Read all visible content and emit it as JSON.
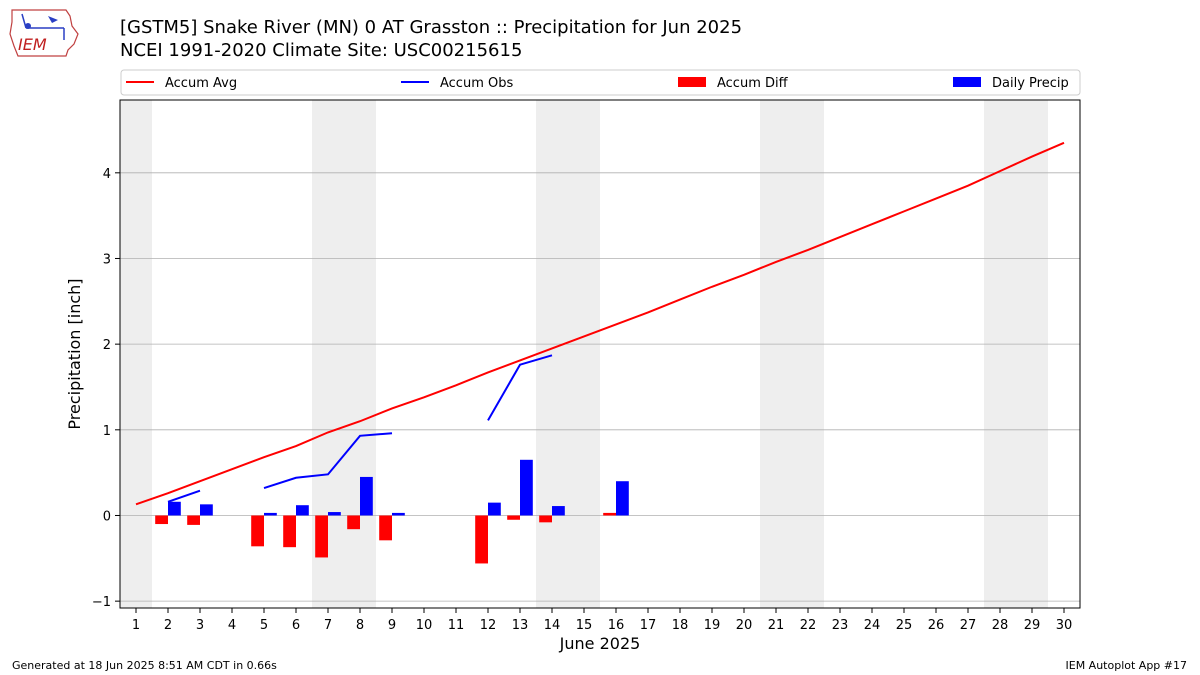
{
  "header": {
    "title_line1": "[GSTM5] Snake River (MN) 0 AT Grasston :: Precipitation for Jun 2025",
    "title_line2": "NCEI 1991-2020 Climate Site: USC00215615"
  },
  "logo": {
    "text": "IEM",
    "icon": "iem-iowa-logo-icon"
  },
  "footer": {
    "generated": "Generated at 18 Jun 2025 8:51 AM CDT in 0.66s",
    "app": "IEM Autoplot App #17"
  },
  "colors": {
    "accum_avg": "#ff0000",
    "accum_obs": "#0000ff",
    "accum_diff": "#ff0000",
    "daily_precip": "#0000ff",
    "weekend_band": "#eeeeee",
    "grid": "#b0b0b0"
  },
  "chart_data": {
    "type": "bar",
    "xlabel": "June 2025",
    "ylabel": "Precipitation [inch]",
    "xlim": [
      0.5,
      30.5
    ],
    "ylim": [
      -1.08,
      4.85
    ],
    "grid": true,
    "legend_placement": "top",
    "days": [
      1,
      2,
      3,
      4,
      5,
      6,
      7,
      8,
      9,
      10,
      11,
      12,
      13,
      14,
      15,
      16,
      17,
      18,
      19,
      20,
      21,
      22,
      23,
      24,
      25,
      26,
      27,
      28,
      29,
      30
    ],
    "y_ticks": [
      -1,
      0,
      1,
      2,
      3,
      4
    ],
    "weekend_days": [
      1,
      7,
      8,
      14,
      15,
      21,
      22,
      28,
      29
    ],
    "series": [
      {
        "name": "Accum Avg",
        "kind": "line",
        "x": [
          1,
          2,
          3,
          4,
          5,
          6,
          7,
          8,
          9,
          10,
          11,
          12,
          13,
          14,
          15,
          16,
          17,
          18,
          19,
          20,
          21,
          22,
          23,
          24,
          25,
          26,
          27,
          28,
          29,
          30
        ],
        "values": [
          0.13,
          0.26,
          0.4,
          0.54,
          0.68,
          0.81,
          0.97,
          1.1,
          1.25,
          1.38,
          1.52,
          1.67,
          1.81,
          1.95,
          2.09,
          2.23,
          2.37,
          2.52,
          2.67,
          2.81,
          2.96,
          3.1,
          3.25,
          3.4,
          3.55,
          3.7,
          3.85,
          4.02,
          4.19,
          4.35
        ]
      },
      {
        "name": "Accum Obs",
        "kind": "line",
        "segments": [
          {
            "x": [
              2,
              3
            ],
            "values": [
              0.16,
              0.29
            ]
          },
          {
            "x": [
              5,
              6,
              7,
              8,
              9
            ],
            "values": [
              0.32,
              0.44,
              0.48,
              0.93,
              0.96
            ]
          },
          {
            "x": [
              12,
              13,
              14
            ],
            "values": [
              1.11,
              1.76,
              1.87
            ]
          }
        ]
      },
      {
        "name": "Accum Diff",
        "kind": "bar",
        "x": [
          2,
          3,
          5,
          6,
          7,
          8,
          9,
          12,
          13,
          14,
          16
        ],
        "values": [
          -0.1,
          -0.11,
          -0.36,
          -0.37,
          -0.49,
          -0.16,
          -0.29,
          -0.56,
          -0.05,
          -0.08,
          0.03
        ]
      },
      {
        "name": "Daily Precip",
        "kind": "bar",
        "x": [
          2,
          3,
          5,
          6,
          7,
          8,
          9,
          12,
          13,
          14,
          16
        ],
        "values": [
          0.16,
          0.13,
          0.03,
          0.12,
          0.04,
          0.45,
          0.03,
          0.15,
          0.65,
          0.11,
          0.4
        ]
      }
    ]
  }
}
